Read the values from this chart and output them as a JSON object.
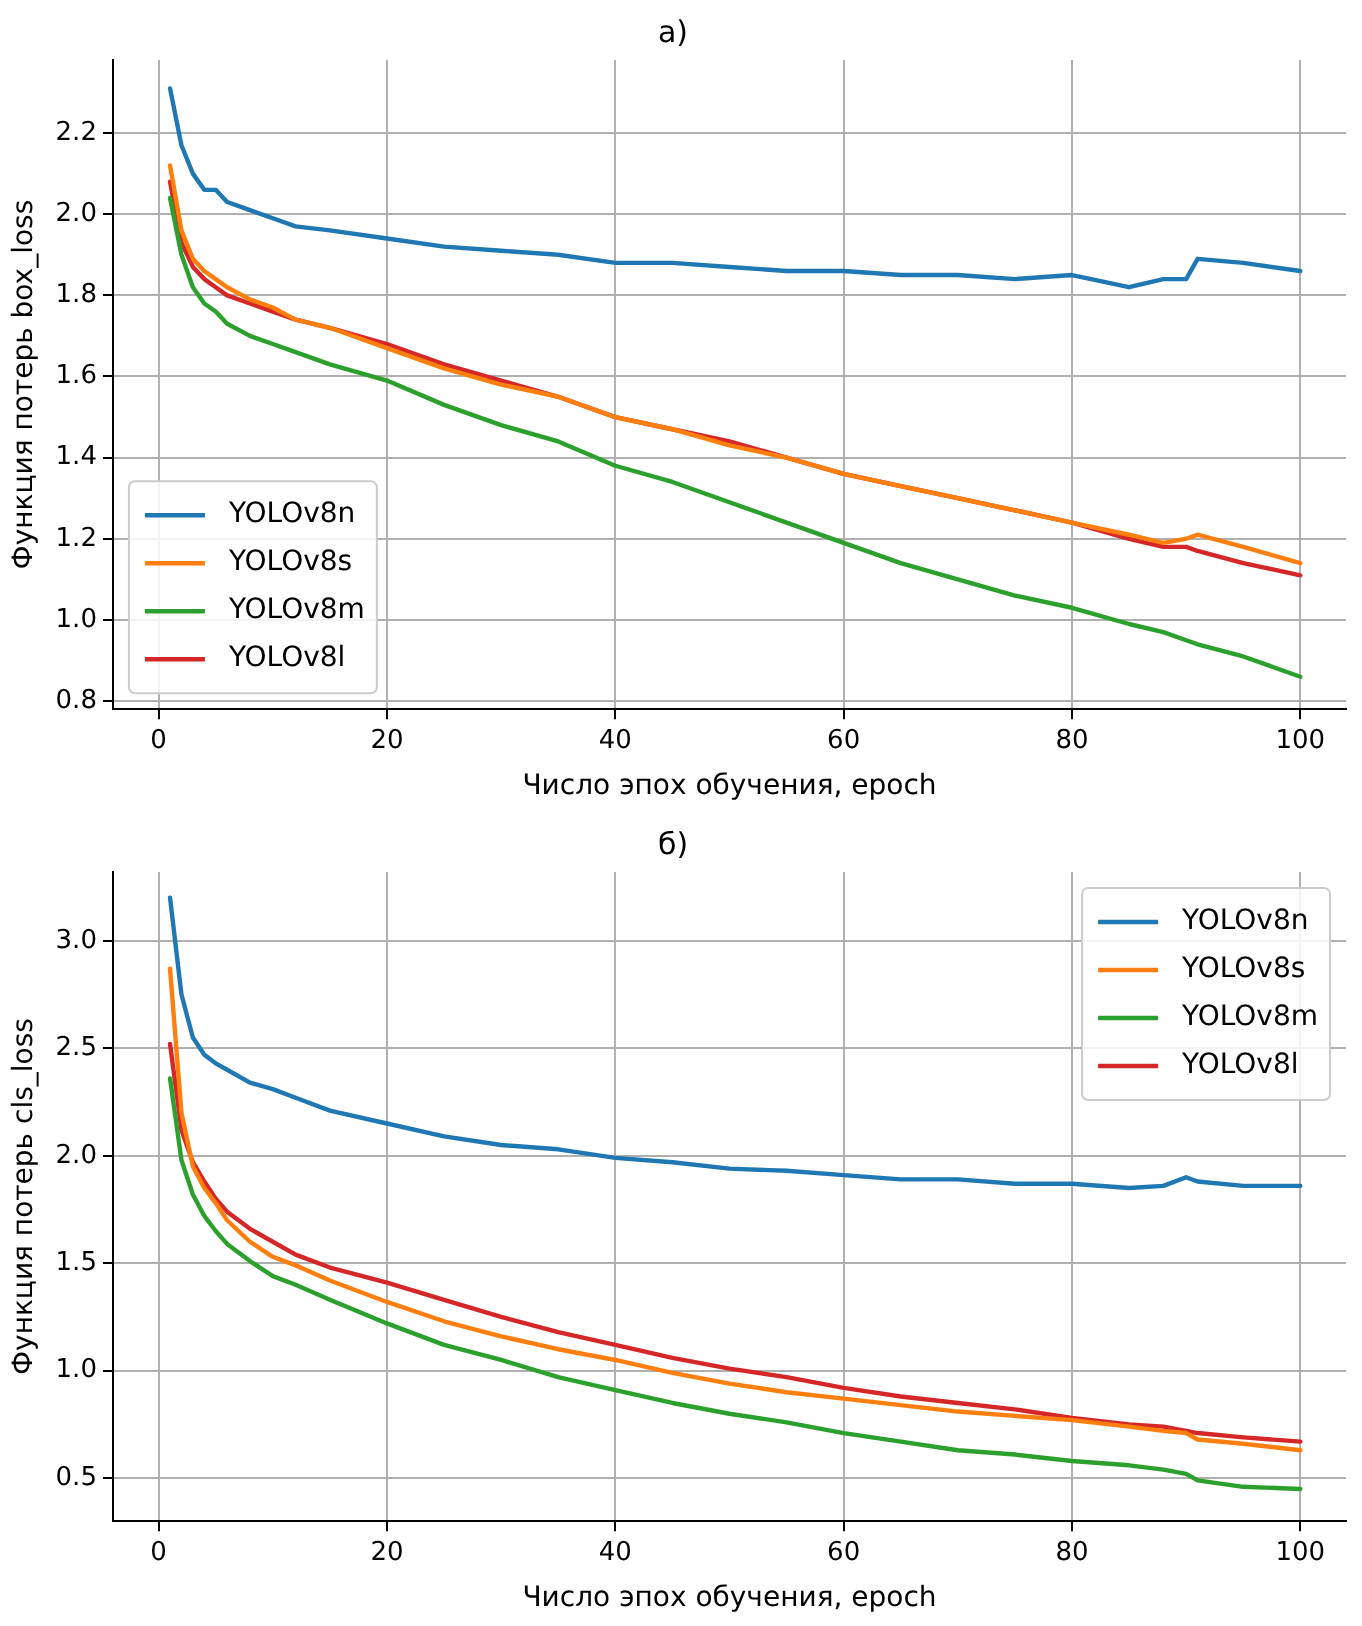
{
  "chart_data": [
    {
      "type": "line",
      "title": "а)",
      "xlabel": "Число эпох обучения, epoch",
      "ylabel": "Функция потерь box_loss",
      "x": [
        1,
        2,
        3,
        4,
        5,
        6,
        8,
        10,
        12,
        15,
        20,
        25,
        30,
        35,
        40,
        45,
        50,
        55,
        60,
        65,
        70,
        75,
        80,
        85,
        88,
        90,
        91,
        95,
        100
      ],
      "xlim": [
        -4,
        104
      ],
      "xticks": [
        0,
        20,
        40,
        60,
        80,
        100
      ],
      "ylim": [
        0.78,
        2.38
      ],
      "yticks": [
        {
          "value": 0.8,
          "label": "0.8"
        },
        {
          "value": 1.0,
          "label": "1.0"
        },
        {
          "value": 1.2,
          "label": "1.2"
        },
        {
          "value": 1.4,
          "label": "1.4"
        },
        {
          "value": 1.6,
          "label": "1.6"
        },
        {
          "value": 1.8,
          "label": "1.8"
        },
        {
          "value": 2.0,
          "label": "2.0"
        },
        {
          "value": 2.2,
          "label": "2.2"
        }
      ],
      "grid": true,
      "legend": "bottom left",
      "marker": "none",
      "line_style": "solid",
      "series": [
        {
          "name": "YOLOv8n",
          "color": "#1f77b4",
          "values": [
            2.31,
            2.17,
            2.1,
            2.06,
            2.06,
            2.03,
            2.01,
            1.99,
            1.97,
            1.96,
            1.94,
            1.92,
            1.91,
            1.9,
            1.88,
            1.88,
            1.87,
            1.86,
            1.86,
            1.85,
            1.85,
            1.84,
            1.85,
            1.82,
            1.84,
            1.84,
            1.89,
            1.88,
            1.86
          ]
        },
        {
          "name": "YOLOv8s",
          "color": "#ff7f0e",
          "values": [
            2.12,
            1.96,
            1.89,
            1.86,
            1.84,
            1.82,
            1.79,
            1.77,
            1.74,
            1.72,
            1.67,
            1.62,
            1.58,
            1.55,
            1.5,
            1.47,
            1.43,
            1.4,
            1.36,
            1.33,
            1.3,
            1.27,
            1.24,
            1.21,
            1.19,
            1.2,
            1.21,
            1.18,
            1.14
          ]
        },
        {
          "name": "YOLOv8m",
          "color": "#2ca02c",
          "values": [
            2.04,
            1.9,
            1.82,
            1.78,
            1.76,
            1.73,
            1.7,
            1.68,
            1.66,
            1.63,
            1.59,
            1.53,
            1.48,
            1.44,
            1.38,
            1.34,
            1.29,
            1.24,
            1.19,
            1.14,
            1.1,
            1.06,
            1.03,
            0.99,
            0.97,
            0.95,
            0.94,
            0.91,
            0.86
          ]
        },
        {
          "name": "YOLOv8l",
          "color": "#d62728",
          "values": [
            2.08,
            1.93,
            1.87,
            1.84,
            1.82,
            1.8,
            1.78,
            1.76,
            1.74,
            1.72,
            1.68,
            1.63,
            1.59,
            1.55,
            1.5,
            1.47,
            1.44,
            1.4,
            1.36,
            1.33,
            1.3,
            1.27,
            1.24,
            1.2,
            1.18,
            1.18,
            1.17,
            1.14,
            1.11
          ]
        }
      ]
    },
    {
      "type": "line",
      "title": "б)",
      "xlabel": "Число эпох обучения, epoch",
      "ylabel": "Функция потерь cls_loss",
      "x": [
        1,
        2,
        3,
        4,
        5,
        6,
        8,
        10,
        12,
        15,
        20,
        25,
        30,
        35,
        40,
        45,
        50,
        55,
        60,
        65,
        70,
        75,
        80,
        85,
        88,
        90,
        91,
        95,
        100
      ],
      "xlim": [
        -4,
        104
      ],
      "xticks": [
        0,
        20,
        40,
        60,
        80,
        100
      ],
      "ylim": [
        0.3,
        3.32
      ],
      "yticks": [
        {
          "value": 0.5,
          "label": "0.5"
        },
        {
          "value": 1.0,
          "label": "1.0"
        },
        {
          "value": 1.5,
          "label": "1.5"
        },
        {
          "value": 2.0,
          "label": "2.0"
        },
        {
          "value": 2.5,
          "label": "2.5"
        },
        {
          "value": 3.0,
          "label": "3.0"
        }
      ],
      "grid": true,
      "legend": "top right",
      "marker": "none",
      "line_style": "solid",
      "series": [
        {
          "name": "YOLOv8n",
          "color": "#1f77b4",
          "values": [
            3.2,
            2.75,
            2.55,
            2.47,
            2.43,
            2.4,
            2.34,
            2.31,
            2.27,
            2.21,
            2.15,
            2.09,
            2.05,
            2.03,
            1.99,
            1.97,
            1.94,
            1.93,
            1.91,
            1.89,
            1.89,
            1.87,
            1.87,
            1.85,
            1.86,
            1.9,
            1.88,
            1.86,
            1.86
          ]
        },
        {
          "name": "YOLOv8s",
          "color": "#ff7f0e",
          "values": [
            2.87,
            2.2,
            1.95,
            1.85,
            1.78,
            1.7,
            1.6,
            1.53,
            1.49,
            1.42,
            1.32,
            1.23,
            1.16,
            1.1,
            1.05,
            0.99,
            0.94,
            0.9,
            0.87,
            0.84,
            0.81,
            0.79,
            0.77,
            0.74,
            0.72,
            0.71,
            0.68,
            0.66,
            0.63
          ]
        },
        {
          "name": "YOLOv8m",
          "color": "#2ca02c",
          "values": [
            2.36,
            1.98,
            1.82,
            1.72,
            1.65,
            1.59,
            1.51,
            1.44,
            1.4,
            1.33,
            1.22,
            1.12,
            1.05,
            0.97,
            0.91,
            0.85,
            0.8,
            0.76,
            0.71,
            0.67,
            0.63,
            0.61,
            0.58,
            0.56,
            0.54,
            0.52,
            0.49,
            0.46,
            0.45
          ]
        },
        {
          "name": "YOLOv8l",
          "color": "#d62728",
          "values": [
            2.52,
            2.12,
            1.97,
            1.88,
            1.8,
            1.74,
            1.66,
            1.6,
            1.54,
            1.48,
            1.41,
            1.33,
            1.25,
            1.18,
            1.12,
            1.06,
            1.01,
            0.97,
            0.92,
            0.88,
            0.85,
            0.82,
            0.78,
            0.75,
            0.74,
            0.72,
            0.71,
            0.69,
            0.67
          ]
        }
      ]
    }
  ]
}
